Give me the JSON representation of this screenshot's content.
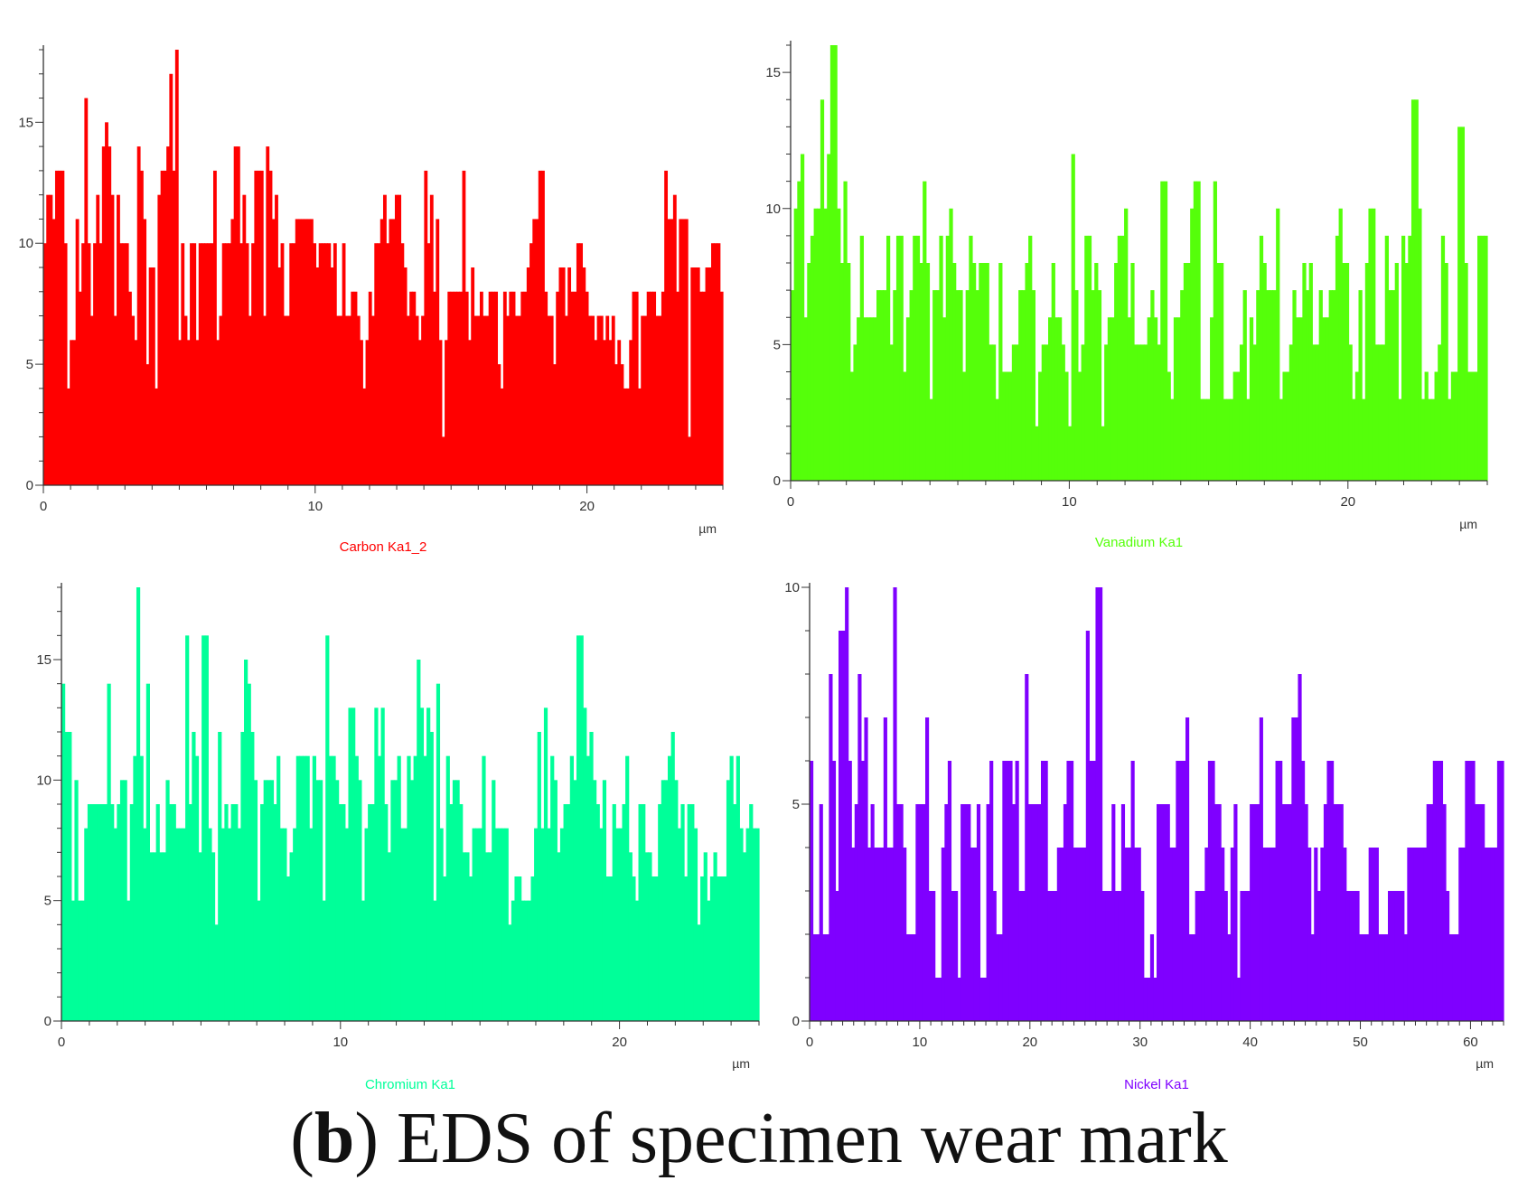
{
  "chart_data": [
    {
      "type": "bar",
      "title": "Carbon Ka1_2",
      "color": "#ff0000",
      "xunit": "µm",
      "xlim": [
        0,
        25
      ],
      "ylim": [
        0,
        18
      ],
      "xticks": [
        0,
        10,
        20
      ],
      "yticks": [
        0,
        5,
        10,
        15
      ],
      "values": [
        10,
        12,
        12,
        11,
        13,
        13,
        13,
        10,
        4,
        6,
        6,
        11,
        8,
        10,
        16,
        10,
        7,
        10,
        12,
        10,
        14,
        15,
        14,
        12,
        7,
        12,
        10,
        10,
        10,
        8,
        7,
        6,
        14,
        13,
        11,
        5,
        9,
        9,
        4,
        12,
        13,
        13,
        14,
        17,
        13,
        18,
        6,
        10,
        7,
        6,
        10,
        10,
        6,
        10,
        10,
        10,
        10,
        10,
        13,
        6,
        7,
        10,
        10,
        10,
        11,
        14,
        14,
        10,
        12,
        10,
        7,
        10,
        13,
        13,
        13,
        7,
        14,
        13,
        11,
        12,
        9,
        10,
        7,
        7,
        10,
        10,
        11,
        11,
        11,
        11,
        11,
        11,
        10,
        9,
        10,
        10,
        10,
        10,
        9,
        10,
        7,
        7,
        10,
        7,
        7,
        8,
        8,
        7,
        6,
        4,
        6,
        8,
        7,
        10,
        10,
        11,
        12,
        10,
        11,
        11,
        12,
        12,
        10,
        9,
        7,
        8,
        8,
        7,
        6,
        7,
        13,
        10,
        12,
        8,
        11,
        6,
        2,
        6,
        8,
        8,
        8,
        8,
        8,
        13,
        8,
        6,
        9,
        7,
        7,
        8,
        7,
        7,
        8,
        8,
        8,
        5,
        4,
        8,
        7,
        8,
        8,
        7,
        7,
        8,
        8,
        9,
        10,
        11,
        11,
        13,
        13,
        8,
        7,
        7,
        5,
        8,
        9,
        9,
        7,
        9,
        8,
        8,
        10,
        10,
        9,
        8,
        7,
        7,
        6,
        7,
        7,
        6,
        7,
        6,
        7,
        5,
        6,
        5,
        4,
        4,
        6,
        8,
        8,
        4,
        7,
        7,
        8,
        8,
        8,
        7,
        7,
        8,
        13,
        11,
        11,
        12,
        8,
        11,
        11,
        11,
        2,
        9,
        9,
        9,
        8,
        8,
        9,
        9,
        10,
        10,
        10,
        8
      ]
    },
    {
      "type": "bar",
      "title": "Vanadium Ka1",
      "color": "#55ff0a",
      "xunit": "µm",
      "xlim": [
        0,
        25
      ],
      "ylim": [
        0,
        16
      ],
      "xticks": [
        0,
        10,
        20
      ],
      "yticks": [
        0,
        5,
        10,
        15
      ],
      "values": [
        7,
        10,
        11,
        12,
        6,
        8,
        9,
        10,
        10,
        14,
        10,
        12,
        16,
        16,
        10,
        8,
        11,
        8,
        4,
        5,
        6,
        9,
        6,
        6,
        6,
        6,
        7,
        7,
        7,
        9,
        5,
        7,
        9,
        9,
        4,
        6,
        7,
        9,
        9,
        8,
        11,
        8,
        3,
        7,
        7,
        9,
        6,
        9,
        10,
        8,
        7,
        7,
        4,
        7,
        9,
        8,
        7,
        8,
        8,
        8,
        5,
        5,
        3,
        8,
        4,
        4,
        4,
        5,
        5,
        7,
        7,
        8,
        9,
        7,
        2,
        4,
        5,
        5,
        6,
        8,
        6,
        6,
        5,
        4,
        2,
        12,
        7,
        4,
        5,
        9,
        9,
        7,
        8,
        7,
        2,
        5,
        6,
        6,
        8,
        9,
        9,
        10,
        6,
        8,
        5,
        5,
        5,
        5,
        6,
        7,
        6,
        5,
        11,
        11,
        4,
        3,
        6,
        6,
        7,
        8,
        8,
        10,
        11,
        11,
        3,
        3,
        3,
        6,
        11,
        8,
        8,
        3,
        3,
        3,
        4,
        4,
        5,
        7,
        3,
        6,
        5,
        7,
        9,
        8,
        7,
        7,
        7,
        10,
        3,
        4,
        4,
        5,
        7,
        6,
        6,
        8,
        7,
        8,
        5,
        5,
        7,
        6,
        6,
        7,
        7,
        9,
        10,
        8,
        8,
        5,
        3,
        4,
        7,
        3,
        8,
        10,
        10,
        5,
        5,
        5,
        9,
        7,
        7,
        8,
        3,
        9,
        8,
        9,
        14,
        14,
        10,
        3,
        4,
        3,
        3,
        4,
        5,
        9,
        8,
        3,
        4,
        4,
        13,
        13,
        8,
        4,
        4,
        4,
        9,
        9,
        9
      ]
    },
    {
      "type": "bar",
      "title": "Chromium Ka1",
      "color": "#00ff99",
      "xunit": "µm",
      "xlim": [
        0,
        25
      ],
      "ylim": [
        0,
        18
      ],
      "xticks": [
        0,
        10,
        20
      ],
      "yticks": [
        0,
        5,
        10,
        15
      ],
      "values": [
        14,
        12,
        12,
        5,
        10,
        5,
        5,
        8,
        9,
        9,
        9,
        9,
        9,
        9,
        14,
        9,
        8,
        9,
        10,
        10,
        5,
        9,
        11,
        18,
        11,
        8,
        14,
        7,
        7,
        9,
        7,
        7,
        10,
        9,
        9,
        8,
        8,
        8,
        16,
        9,
        12,
        11,
        7,
        16,
        16,
        8,
        7,
        4,
        12,
        8,
        9,
        8,
        9,
        9,
        8,
        12,
        15,
        14,
        12,
        10,
        5,
        9,
        10,
        10,
        10,
        9,
        11,
        8,
        8,
        6,
        7,
        8,
        11,
        11,
        11,
        11,
        8,
        11,
        10,
        10,
        5,
        16,
        11,
        11,
        10,
        9,
        9,
        8,
        13,
        13,
        11,
        10,
        5,
        8,
        9,
        9,
        13,
        11,
        13,
        9,
        7,
        10,
        10,
        11,
        8,
        8,
        11,
        10,
        11,
        15,
        13,
        11,
        13,
        12,
        5,
        14,
        8,
        6,
        11,
        9,
        10,
        10,
        9,
        7,
        7,
        6,
        8,
        8,
        8,
        11,
        7,
        7,
        10,
        8,
        8,
        8,
        8,
        4,
        5,
        6,
        6,
        5,
        5,
        5,
        6,
        8,
        12,
        8,
        13,
        8,
        11,
        10,
        7,
        8,
        9,
        9,
        11,
        10,
        16,
        16,
        13,
        11,
        12,
        10,
        9,
        8,
        10,
        6,
        6,
        9,
        8,
        8,
        9,
        11,
        7,
        6,
        5,
        9,
        9,
        7,
        7,
        6,
        6,
        9,
        10,
        10,
        11,
        12,
        10,
        8,
        9,
        6,
        9,
        9,
        8,
        4,
        6,
        7,
        5,
        6,
        7,
        6,
        6,
        6,
        10,
        11,
        9,
        11,
        8,
        7,
        8,
        9,
        8,
        8
      ]
    },
    {
      "type": "bar",
      "title": "Nickel Ka1",
      "color": "#7f00ff",
      "xunit": "µm",
      "xlim": [
        0,
        63
      ],
      "ylim": [
        0,
        10
      ],
      "xticks": [
        0,
        10,
        20,
        30,
        40,
        50,
        60
      ],
      "yticks": [
        0,
        5,
        10
      ],
      "values": [
        6,
        2,
        2,
        5,
        2,
        2,
        8,
        6,
        3,
        9,
        9,
        10,
        6,
        4,
        5,
        8,
        6,
        7,
        4,
        5,
        4,
        4,
        4,
        7,
        4,
        4,
        10,
        5,
        5,
        4,
        2,
        2,
        2,
        5,
        5,
        5,
        7,
        3,
        3,
        1,
        1,
        4,
        5,
        6,
        3,
        3,
        1,
        5,
        5,
        5,
        4,
        4,
        5,
        1,
        1,
        5,
        6,
        3,
        2,
        2,
        6,
        6,
        6,
        5,
        6,
        3,
        3,
        8,
        5,
        5,
        5,
        5,
        6,
        6,
        3,
        3,
        3,
        4,
        4,
        5,
        6,
        6,
        4,
        4,
        4,
        4,
        9,
        6,
        6,
        10,
        10,
        3,
        3,
        3,
        5,
        3,
        3,
        5,
        4,
        4,
        6,
        4,
        4,
        3,
        1,
        1,
        2,
        1,
        5,
        5,
        5,
        5,
        4,
        4,
        6,
        6,
        6,
        7,
        2,
        2,
        3,
        3,
        3,
        4,
        6,
        6,
        5,
        5,
        4,
        3,
        2,
        4,
        5,
        1,
        3,
        3,
        3,
        5,
        5,
        5,
        7,
        4,
        4,
        4,
        4,
        6,
        6,
        5,
        5,
        5,
        7,
        7,
        8,
        6,
        5,
        4,
        2,
        4,
        3,
        4,
        5,
        6,
        6,
        5,
        5,
        5,
        4,
        3,
        3,
        3,
        3,
        2,
        2,
        2,
        4,
        4,
        4,
        2,
        2,
        2,
        3,
        3,
        3,
        3,
        3,
        2,
        4,
        4,
        4,
        4,
        4,
        4,
        5,
        5,
        6,
        6,
        6,
        5,
        3,
        2,
        2,
        2,
        4,
        4,
        6,
        6,
        6,
        5,
        5,
        5,
        4,
        4,
        4,
        4,
        6,
        6
      ]
    }
  ],
  "figure_caption": {
    "label": "b",
    "text": "EDS of specimen wear mark"
  }
}
